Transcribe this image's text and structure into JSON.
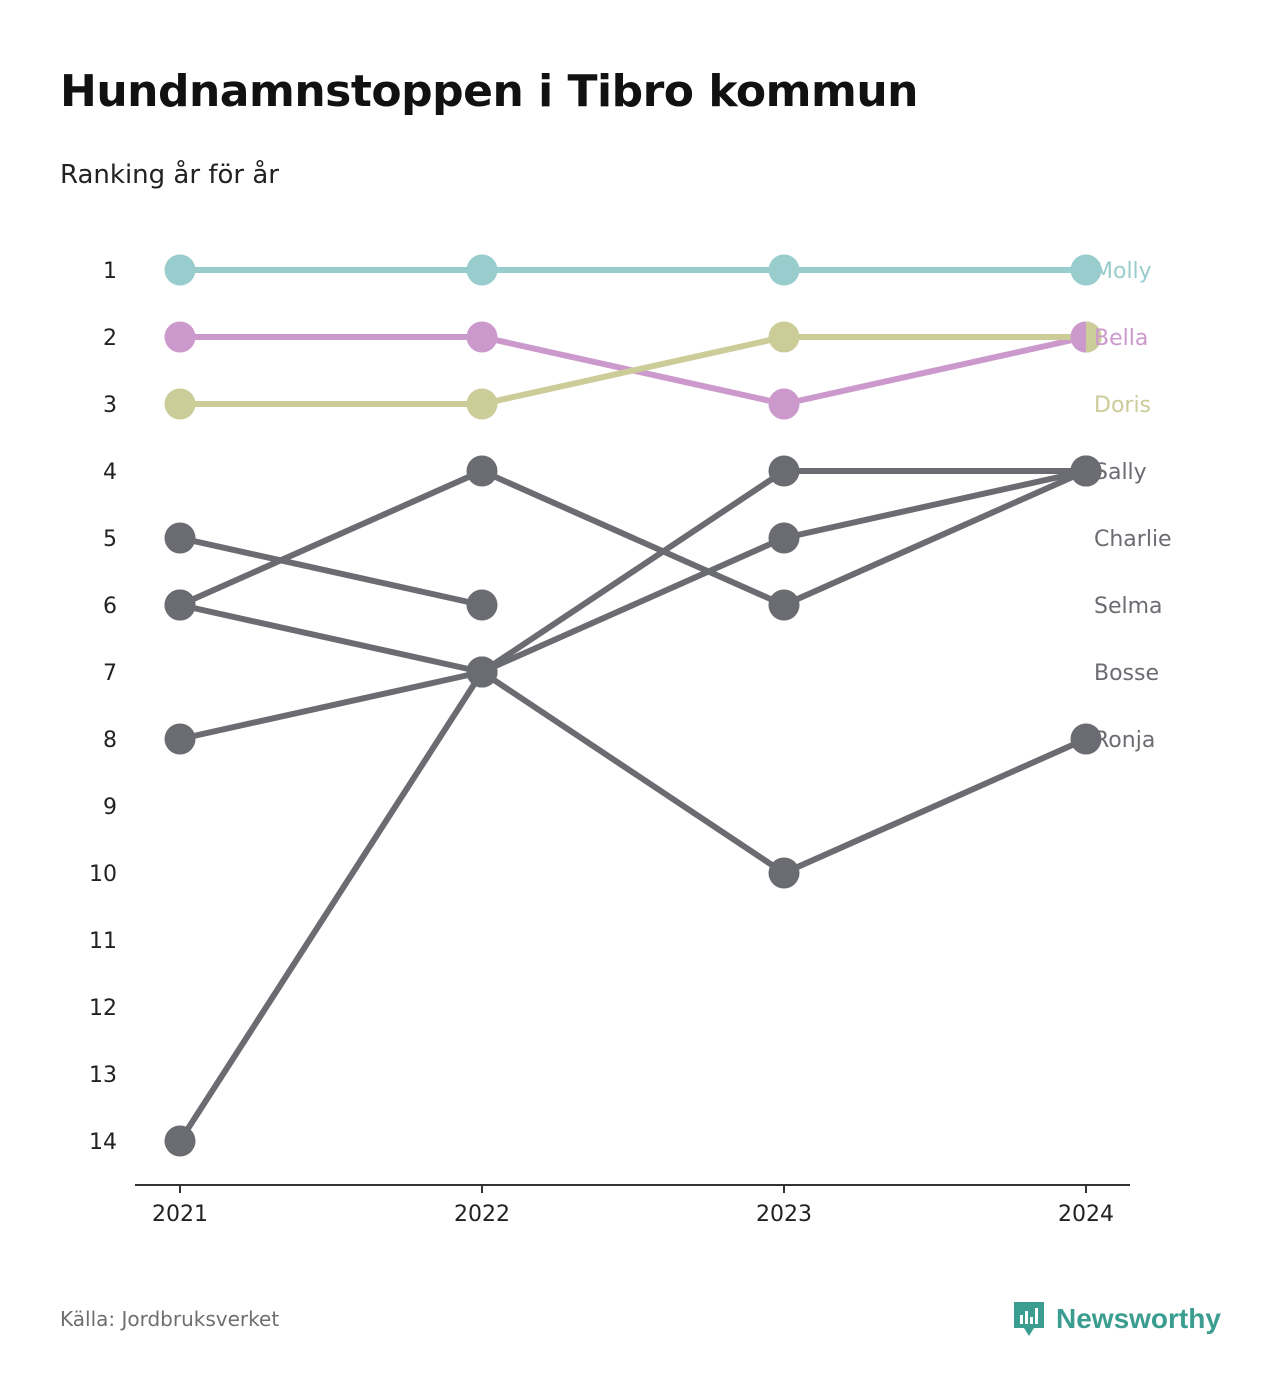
{
  "title": "Hundnamnstoppen i Tibro kommun",
  "subtitle": "Ranking år för år",
  "source": "Källa: Jordbruksverket",
  "brand": "Newsworthy",
  "colors": {
    "molly": "#99cccc",
    "bella": "#cc99cc",
    "doris": "#cccc99",
    "gray": "#6b6b72",
    "axis": "#333333",
    "brand": "#3a9d8f"
  },
  "chart_data": {
    "type": "line",
    "title": "Hundnamnstoppen i Tibro kommun",
    "subtitle": "Ranking år för år",
    "x": [
      "2021",
      "2022",
      "2023",
      "2024"
    ],
    "y_ticks": [
      1,
      2,
      3,
      4,
      5,
      6,
      7,
      8,
      9,
      10,
      11,
      12,
      13,
      14
    ],
    "ylim": [
      1,
      14
    ],
    "y_reversed": true,
    "grid": false,
    "series": [
      {
        "name": "Molly",
        "values": [
          1,
          1,
          1,
          1
        ],
        "color": "#99cccc"
      },
      {
        "name": "Bella",
        "values": [
          2,
          2,
          3,
          2
        ],
        "color": "#cc99cc"
      },
      {
        "name": "Doris",
        "values": [
          3,
          3,
          2,
          2
        ],
        "color": "#cccc99"
      },
      {
        "name": "Sally",
        "values": [
          14,
          7,
          4,
          4
        ],
        "color": "#6b6b72"
      },
      {
        "name": "Charlie",
        "values": [
          8,
          7,
          5,
          4
        ],
        "color": "#6b6b72"
      },
      {
        "name": "Selma",
        "values": [
          6,
          4,
          6,
          4
        ],
        "color": "#6b6b72"
      },
      {
        "name": "Bosse",
        "values": [
          5,
          6,
          null,
          null
        ],
        "color": "#6b6b72"
      },
      {
        "name": "Ronja",
        "values": [
          6,
          7,
          10,
          8
        ],
        "color": "#6b6b72"
      }
    ],
    "end_labels": [
      {
        "text": "Molly",
        "rank": 1,
        "color": "#99cccc"
      },
      {
        "text": "Bella",
        "rank": 2,
        "color": "#cc99cc"
      },
      {
        "text": "Doris",
        "rank": 3,
        "color": "#cccc99"
      },
      {
        "text": "Sally",
        "rank": 4,
        "color": "#6b6b72"
      },
      {
        "text": "Charlie",
        "rank": 5,
        "color": "#6b6b72"
      },
      {
        "text": "Selma",
        "rank": 6,
        "color": "#6b6b72"
      },
      {
        "text": "Bosse",
        "rank": 7,
        "color": "#6b6b72"
      },
      {
        "text": "Ronja",
        "rank": 8,
        "color": "#6b6b72"
      }
    ]
  }
}
